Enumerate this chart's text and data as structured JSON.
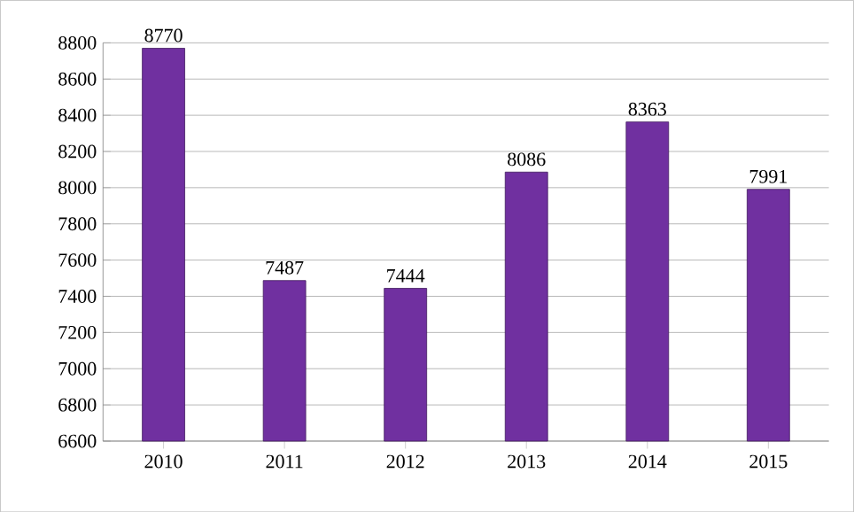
{
  "chart_data": {
    "type": "bar",
    "categories": [
      "2010",
      "2011",
      "2012",
      "2013",
      "2014",
      "2015"
    ],
    "values": [
      8770,
      7487,
      7444,
      8086,
      8363,
      7991
    ],
    "color": "#7030a0",
    "ylim": [
      6600,
      8800
    ],
    "yticks": [
      6600,
      6800,
      7000,
      7200,
      7400,
      7600,
      7800,
      8000,
      8200,
      8400,
      8600,
      8800
    ],
    "grid": "y",
    "data_labels": true
  }
}
